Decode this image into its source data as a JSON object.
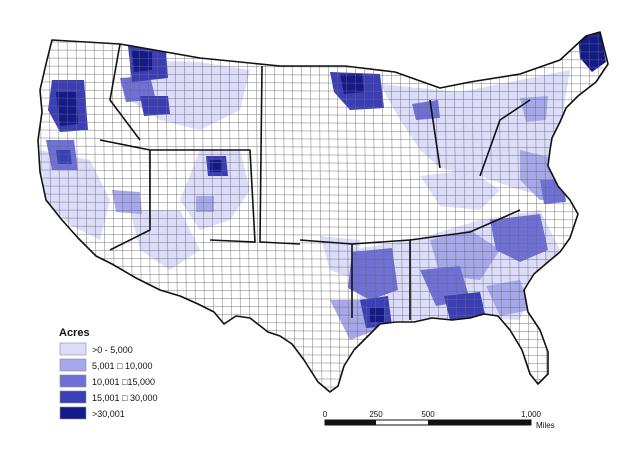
{
  "legend": {
    "title": "Acres",
    "classes": [
      {
        "label": ">0 - 5,000",
        "color": "#dcdcfb"
      },
      {
        "label": "5,001 □ 10,000",
        "color": "#a7a7ec"
      },
      {
        "label": "10,001 □15,000",
        "color": "#6e70d8"
      },
      {
        "label": "15,001 □ 30,000",
        "color": "#3a3eb8"
      },
      {
        "label": ">30,001",
        "color": "#141a8a"
      }
    ]
  },
  "scalebar": {
    "ticks": [
      "0",
      "250",
      "500",
      "1,000"
    ],
    "unit": "Miles"
  },
  "colors": {
    "land_background": "#ffffff",
    "county_line": "#6b6b6b",
    "state_line": "#111111"
  }
}
